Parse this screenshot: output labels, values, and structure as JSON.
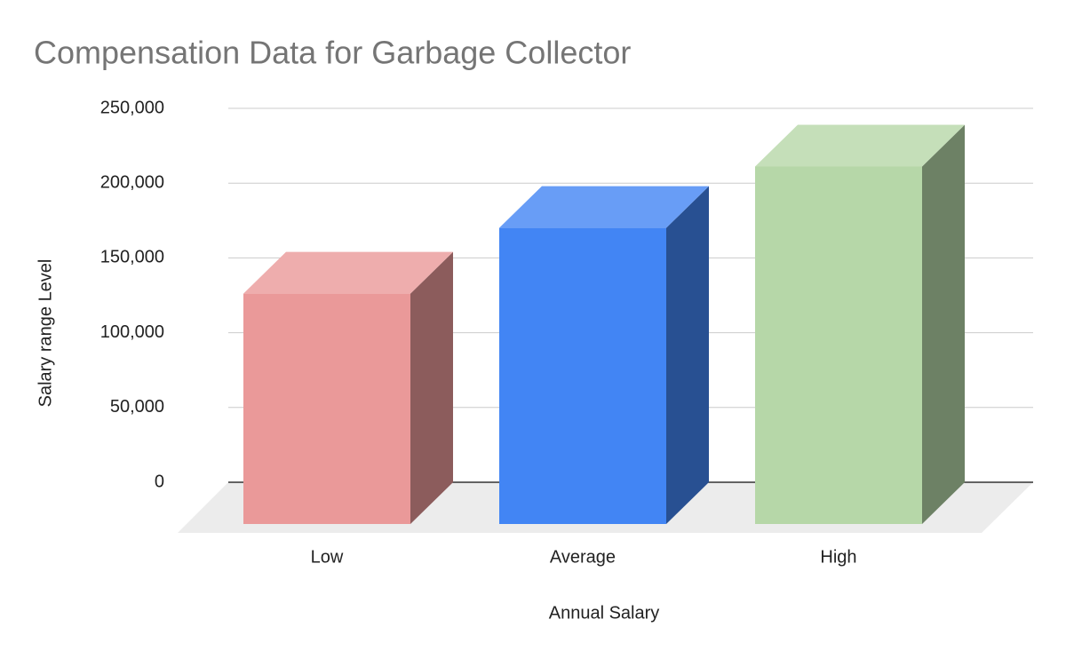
{
  "chart_data": {
    "type": "bar3d",
    "title": "Compensation Data for Garbage Collector",
    "categories": [
      "Low",
      "Average",
      "High"
    ],
    "values": [
      154000,
      198000,
      239000
    ],
    "colors": [
      "#ea9999",
      "#4285f4",
      "#b6d7a8"
    ],
    "xlabel": "Annual Salary",
    "ylabel": "Salary range Level",
    "ylim": [
      0,
      250000
    ],
    "yticks": [
      0,
      {
        "value": 50000,
        "label": "50,000"
      },
      {
        "value": 100000,
        "label": "100,000"
      },
      {
        "value": 150000,
        "label": "150,000"
      },
      {
        "value": 200000,
        "label": "200,000"
      },
      {
        "value": 250000,
        "label": "250,000"
      }
    ],
    "grid": true
  }
}
